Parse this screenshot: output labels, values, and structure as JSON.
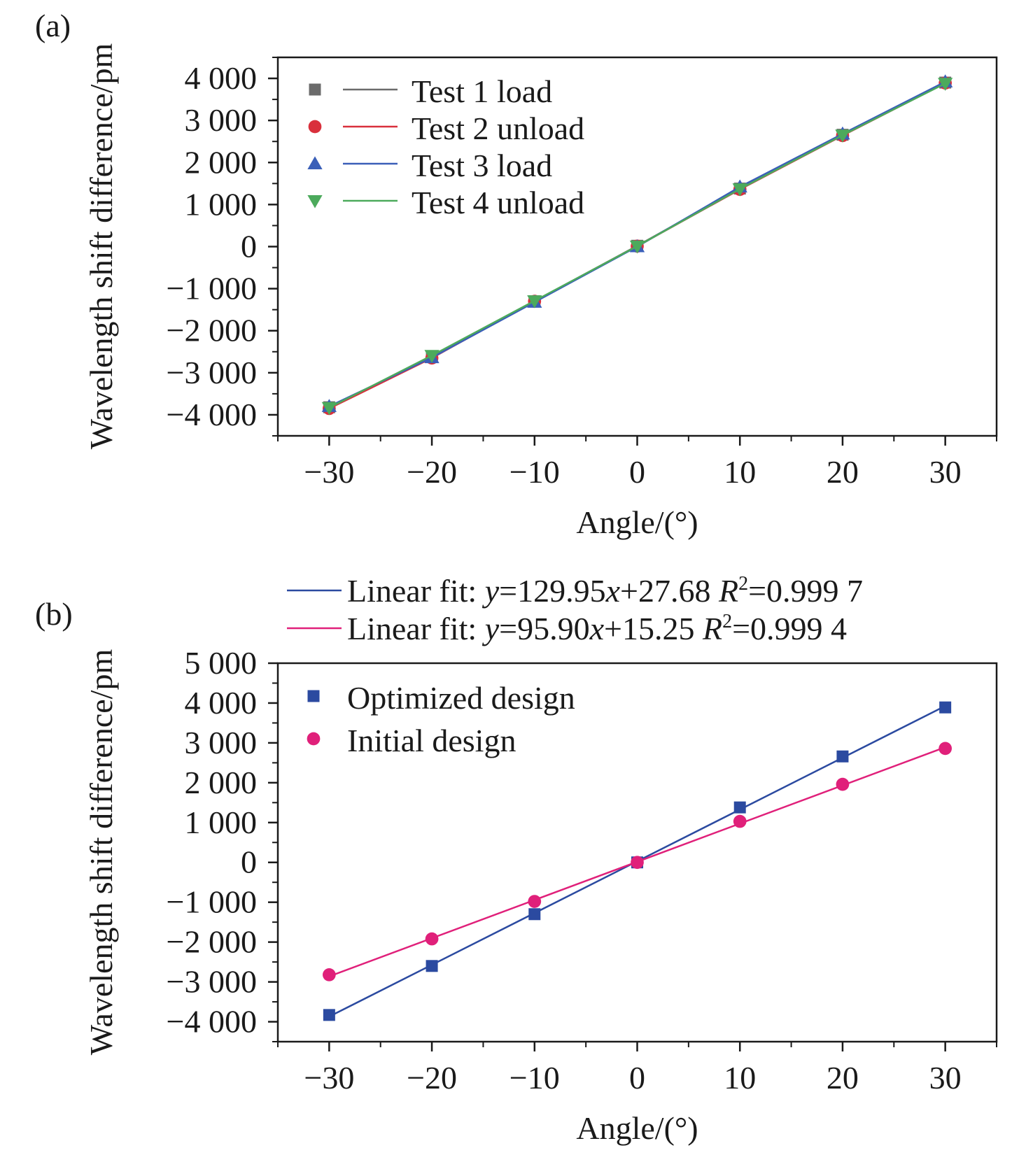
{
  "chart_data": [
    {
      "panel_label": "(a)",
      "type": "line",
      "xlabel": "Angle/(°)",
      "ylabel": "Wavelength shift difference/pm",
      "xlim": [
        -35,
        35
      ],
      "ylim": [
        -4500,
        4500
      ],
      "x_ticks": [
        -30,
        -20,
        -10,
        0,
        10,
        20,
        30
      ],
      "x_tick_labels": [
        "−30",
        "−20",
        "−10",
        "0",
        "10",
        "20",
        "30"
      ],
      "y_ticks": [
        4000,
        3000,
        2000,
        1000,
        0,
        -1000,
        -2000,
        -3000,
        -4000
      ],
      "y_tick_labels": [
        "4 000",
        "3 000",
        "2 000",
        "1 000",
        "0",
        "−1 000",
        "−2 000",
        "−3 000",
        "−4 000"
      ],
      "grid": false,
      "legend_position": "top-left",
      "x": [
        -30,
        -20,
        -10,
        0,
        10,
        20,
        30
      ],
      "series": [
        {
          "name": "Test 1 load",
          "marker": "square",
          "color": "#6b6b6b",
          "values": [
            -3820,
            -2620,
            -1300,
            20,
            1380,
            2660,
            3900
          ]
        },
        {
          "name": "Test 2 unload",
          "marker": "circle",
          "color": "#d9303c",
          "values": [
            -3850,
            -2650,
            -1300,
            10,
            1360,
            2640,
            3890
          ]
        },
        {
          "name": "Test 3 load",
          "marker": "triangle-up",
          "color": "#3a5fb8",
          "values": [
            -3800,
            -2640,
            -1320,
            0,
            1420,
            2680,
            3920
          ]
        },
        {
          "name": "Test 4 unload",
          "marker": "triangle-down",
          "color": "#4caa5c",
          "values": [
            -3830,
            -2590,
            -1290,
            10,
            1370,
            2650,
            3880
          ]
        }
      ]
    },
    {
      "panel_label": "(b)",
      "type": "line",
      "xlabel": "Angle/(°)",
      "ylabel": "Wavelength shift difference/pm",
      "xlim": [
        -35,
        35
      ],
      "ylim": [
        -4500,
        5000
      ],
      "x_ticks": [
        -30,
        -20,
        -10,
        0,
        10,
        20,
        30
      ],
      "x_tick_labels": [
        "−30",
        "−20",
        "−10",
        "0",
        "10",
        "20",
        "30"
      ],
      "y_ticks": [
        5000,
        4000,
        3000,
        2000,
        1000,
        0,
        -1000,
        -2000,
        -3000,
        -4000
      ],
      "y_tick_labels": [
        "5 000",
        "4 000",
        "3 000",
        "2 000",
        "1 000",
        "0",
        "−1 000",
        "−2 000",
        "−3 000",
        "−4 000"
      ],
      "grid": false,
      "legend_position": "top-left",
      "fit_legend": [
        {
          "prefix": "Linear fit: ",
          "var_y": "y",
          "eq1": "=129.95",
          "var_x": "x",
          "eq2": "+27.68 ",
          "r": "R",
          "sup": "2",
          "eq3": "=0.999 7",
          "color": "#2b4aa0"
        },
        {
          "prefix": "Linear fit: ",
          "var_y": "y",
          "eq1": "=95.90",
          "var_x": "x",
          "eq2": "+15.25 ",
          "r": "R",
          "sup": "2",
          "eq3": "=0.999 4",
          "color": "#e0207a"
        }
      ],
      "x": [
        -30,
        -20,
        -10,
        0,
        10,
        20,
        30
      ],
      "series": [
        {
          "name": "Optimized design",
          "marker": "square",
          "color": "#2b4aa0",
          "values": [
            -3830,
            -2600,
            -1300,
            0,
            1380,
            2660,
            3890
          ],
          "fit": {
            "slope": 129.95,
            "intercept": 27.68
          }
        },
        {
          "name": "Initial design",
          "marker": "circle",
          "color": "#e0207a",
          "values": [
            -2820,
            -1920,
            -980,
            0,
            1030,
            1960,
            2860
          ],
          "fit": {
            "slope": 95.9,
            "intercept": 15.25
          }
        }
      ]
    }
  ]
}
